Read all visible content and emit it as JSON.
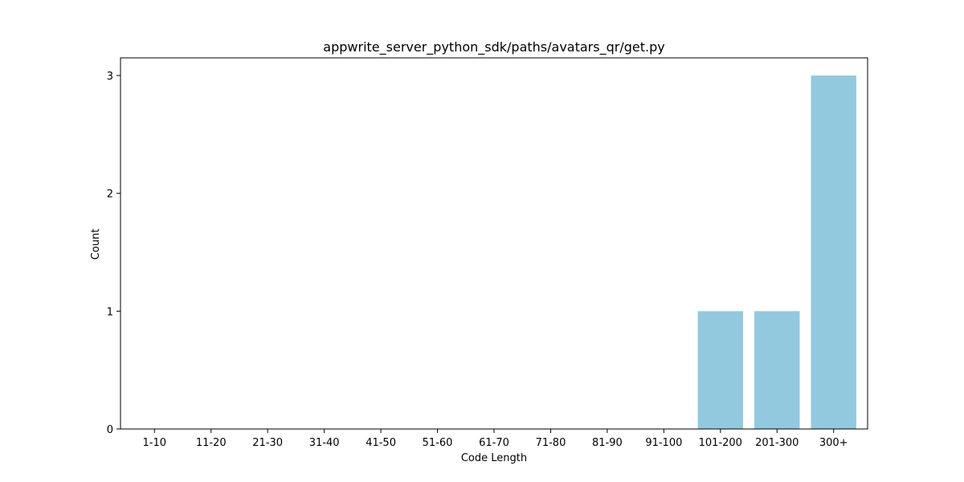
{
  "chart_data": {
    "type": "bar",
    "title": "appwrite_server_python_sdk/paths/avatars_qr/get.py",
    "xlabel": "Code Length",
    "ylabel": "Count",
    "categories": [
      "1-10",
      "11-20",
      "21-30",
      "31-40",
      "41-50",
      "51-60",
      "61-70",
      "71-80",
      "81-90",
      "91-100",
      "101-200",
      "201-300",
      "300+"
    ],
    "values": [
      0,
      0,
      0,
      0,
      0,
      0,
      0,
      0,
      0,
      0,
      1,
      1,
      3
    ],
    "ylim": [
      0,
      3.15
    ],
    "yticks": [
      0,
      1,
      2,
      3
    ],
    "bar_color": "#92c9de",
    "grid": false,
    "legend": "none"
  }
}
